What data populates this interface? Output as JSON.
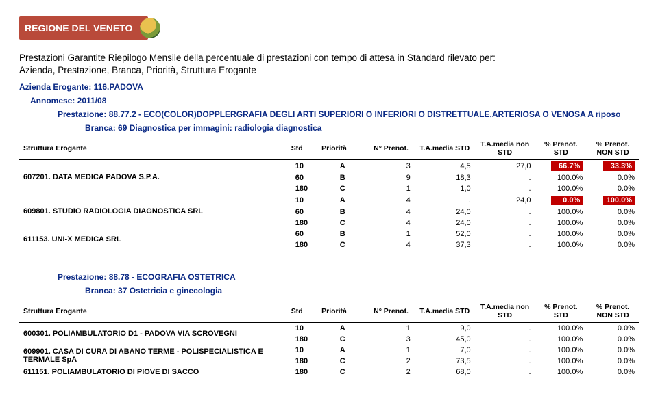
{
  "region_label": "REGIONE DEL VENETO",
  "title_line1": "Prestazioni Garantite Riepilogo Mensile della percentuale di prestazioni con tempo di attesa in Standard rilevato per:",
  "title_line2": "Azienda, Prestazione, Branca, Priorità, Struttura Erogante",
  "azienda": "Azienda Erogante: 116.PADOVA",
  "annomese": "Annomese: 2011/08",
  "prestazione1": "Prestazione: 88.77.2 - ECO(COLOR)DOPPLERGRAFIA DEGLI ARTI SUPERIORI O INFERIORI O DISTRETTUALE,ARTERIOSA O VENOSA A riposo",
  "branca1": "Branca: 69 Diagnostica per immagini: radiologia diagnostica",
  "prestazione2": "Prestazione: 88.78 - ECOGRAFIA OSTETRICA",
  "branca2": "Branca: 37 Ostetricia e ginecologia",
  "headers": {
    "se": "Struttura Erogante",
    "std": "Std",
    "pri": "Priorità",
    "n": "N° Prenot.",
    "tam": "T.A.media STD",
    "tamn": "T.A.media non STD",
    "p1": "% Prenot. STD",
    "p2": "% Prenot. NON STD"
  },
  "table1": {
    "groups": [
      {
        "label": "607201. DATA MEDICA PADOVA S.P.A.",
        "rows": [
          {
            "std": "10",
            "pri": "A",
            "n": "3",
            "tam": "4,5",
            "tamn": "27,0",
            "p1": "66.7%",
            "p2": "33.3%",
            "hot": true
          },
          {
            "std": "60",
            "pri": "B",
            "n": "9",
            "tam": "18,3",
            "tamn": ".",
            "p1": "100.0%",
            "p2": "0.0%",
            "hot": false
          },
          {
            "std": "180",
            "pri": "C",
            "n": "1",
            "tam": "1,0",
            "tamn": ".",
            "p1": "100.0%",
            "p2": "0.0%",
            "hot": false
          }
        ]
      },
      {
        "label": "609801. STUDIO RADIOLOGIA DIAGNOSTICA SRL",
        "rows": [
          {
            "std": "10",
            "pri": "A",
            "n": "4",
            "tam": ".",
            "tamn": "24,0",
            "p1": "0.0%",
            "p2": "100.0%",
            "hot": true
          },
          {
            "std": "60",
            "pri": "B",
            "n": "4",
            "tam": "24,0",
            "tamn": ".",
            "p1": "100.0%",
            "p2": "0.0%",
            "hot": false
          },
          {
            "std": "180",
            "pri": "C",
            "n": "4",
            "tam": "24,0",
            "tamn": ".",
            "p1": "100.0%",
            "p2": "0.0%",
            "hot": false
          }
        ]
      },
      {
        "label": "611153. UNI-X MEDICA SRL",
        "rows": [
          {
            "std": "60",
            "pri": "B",
            "n": "1",
            "tam": "52,0",
            "tamn": ".",
            "p1": "100.0%",
            "p2": "0.0%",
            "hot": false
          },
          {
            "std": "180",
            "pri": "C",
            "n": "4",
            "tam": "37,3",
            "tamn": ".",
            "p1": "100.0%",
            "p2": "0.0%",
            "hot": false
          }
        ]
      }
    ]
  },
  "table2": {
    "groups": [
      {
        "label": "600301. POLIAMBULATORIO D1 - PADOVA VIA SCROVEGNI",
        "rows": [
          {
            "std": "10",
            "pri": "A",
            "n": "1",
            "tam": "9,0",
            "tamn": ".",
            "p1": "100.0%",
            "p2": "0.0%",
            "hot": false
          },
          {
            "std": "180",
            "pri": "C",
            "n": "3",
            "tam": "45,0",
            "tamn": ".",
            "p1": "100.0%",
            "p2": "0.0%",
            "hot": false
          }
        ]
      },
      {
        "label": "609901. CASA DI CURA DI ABANO TERME - POLISPECIALISTICA E TERMALE SpA",
        "rows": [
          {
            "std": "10",
            "pri": "A",
            "n": "1",
            "tam": "7,0",
            "tamn": ".",
            "p1": "100.0%",
            "p2": "0.0%",
            "hot": false
          },
          {
            "std": "180",
            "pri": "C",
            "n": "2",
            "tam": "73,5",
            "tamn": ".",
            "p1": "100.0%",
            "p2": "0.0%",
            "hot": false
          }
        ]
      },
      {
        "label": "611151. POLIAMBULATORIO DI PIOVE DI SACCO",
        "rows": [
          {
            "std": "180",
            "pri": "C",
            "n": "2",
            "tam": "68,0",
            "tamn": ".",
            "p1": "100.0%",
            "p2": "0.0%",
            "hot": false
          }
        ]
      }
    ]
  }
}
